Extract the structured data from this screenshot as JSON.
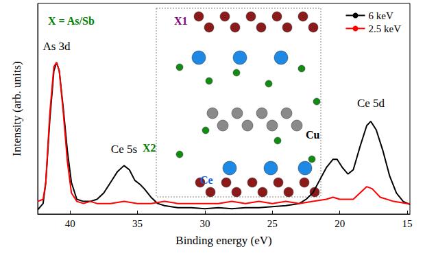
{
  "chart_data": {
    "type": "line",
    "x_label": "Binding energy (eV)",
    "y_label": "Intensity (arb. units)",
    "xlim": [
      42.4,
      14.8
    ],
    "xticks": [
      40,
      35,
      30,
      25,
      20,
      15
    ],
    "ylim": [
      0,
      1
    ],
    "tick_labels": "x",
    "grid": false,
    "legend": "upper right",
    "series": [
      {
        "name": "6 keV",
        "color": "#000000",
        "x": [
          42.4,
          42.0,
          41.8,
          41.5,
          41.2,
          41.0,
          40.8,
          40.5,
          40.2,
          39.9,
          39.5,
          39.0,
          38.5,
          38.0,
          37.5,
          37.0,
          36.5,
          36.0,
          35.6,
          35.2,
          34.8,
          34.5,
          34.0,
          33.5,
          33.0,
          32.0,
          31.0,
          30.0,
          29.0,
          28.0,
          27.0,
          26.0,
          25.0,
          24.0,
          23.0,
          22.5,
          22.0,
          21.5,
          21.0,
          20.5,
          20.2,
          19.8,
          19.4,
          19.0,
          18.5,
          18.0,
          17.7,
          17.3,
          16.8,
          16.3,
          15.8,
          15.3,
          14.8
        ],
        "values": [
          0.02,
          0.05,
          0.15,
          0.45,
          0.68,
          0.72,
          0.68,
          0.5,
          0.3,
          0.15,
          0.07,
          0.06,
          0.06,
          0.07,
          0.1,
          0.15,
          0.2,
          0.23,
          0.21,
          0.16,
          0.14,
          0.12,
          0.08,
          0.05,
          0.04,
          0.03,
          0.03,
          0.025,
          0.03,
          0.025,
          0.03,
          0.03,
          0.035,
          0.04,
          0.05,
          0.07,
          0.1,
          0.16,
          0.22,
          0.26,
          0.26,
          0.22,
          0.19,
          0.21,
          0.32,
          0.42,
          0.44,
          0.4,
          0.3,
          0.18,
          0.1,
          0.06,
          0.045
        ]
      },
      {
        "name": "2.5 keV",
        "color": "#ff0000",
        "x": [
          42.4,
          42.0,
          41.8,
          41.5,
          41.2,
          41.0,
          40.8,
          40.5,
          40.2,
          39.9,
          39.5,
          39.0,
          38.5,
          38.0,
          37.0,
          36.0,
          35.0,
          34.0,
          33.0,
          32.0,
          31.0,
          30.0,
          29.0,
          28.0,
          27.0,
          26.0,
          25.0,
          24.0,
          23.0,
          22.0,
          21.0,
          20.5,
          20.0,
          19.0,
          18.5,
          18.0,
          17.6,
          17.0,
          16.0,
          15.0,
          14.8
        ],
        "values": [
          0.06,
          0.07,
          0.15,
          0.48,
          0.7,
          0.72,
          0.68,
          0.48,
          0.25,
          0.1,
          0.06,
          0.05,
          0.06,
          0.05,
          0.05,
          0.06,
          0.05,
          0.05,
          0.06,
          0.05,
          0.05,
          0.05,
          0.05,
          0.06,
          0.05,
          0.06,
          0.05,
          0.06,
          0.05,
          0.06,
          0.07,
          0.08,
          0.07,
          0.07,
          0.1,
          0.13,
          0.12,
          0.08,
          0.06,
          0.05,
          0.05
        ]
      }
    ],
    "annotations": [
      {
        "text": "As 3d",
        "x": 41.0,
        "y": 0.77
      },
      {
        "text": "Ce 5s",
        "x": 36.0,
        "y": 0.28
      },
      {
        "text": "Ce 5d",
        "x": 17.7,
        "y": 0.5
      }
    ],
    "inset_labels": [
      {
        "text": "X = As/Sb",
        "color": "#008000"
      },
      {
        "text": "X1",
        "color": "#800080"
      },
      {
        "text": "X2",
        "color": "#008000"
      },
      {
        "text": "Cu",
        "color": "#000000"
      },
      {
        "text": "Ce",
        "color": "#1060e0"
      }
    ]
  }
}
